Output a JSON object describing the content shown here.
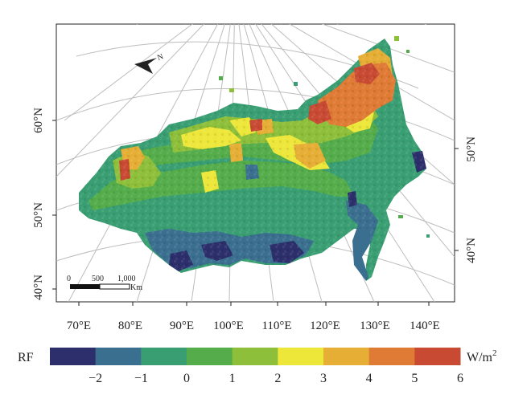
{
  "map": {
    "meridian_labels": [
      "70°E",
      "80°E",
      "90°E",
      "100°E",
      "110°E",
      "120°E",
      "130°E",
      "140°E"
    ],
    "left_lat_labels": [
      "60°N",
      "50°N",
      "40°N"
    ],
    "right_lat_labels": [
      "50°N",
      "40°N"
    ],
    "north_arrow_label": "N",
    "scale_bar": {
      "ticks": [
        "0",
        "500",
        "1,000"
      ],
      "unit": "Km"
    }
  },
  "legend": {
    "title": "RF",
    "unit": "W/m",
    "unit_superscript": "2",
    "tick_labels": [
      "−2",
      "−1",
      "0",
      "1",
      "2",
      "3",
      "4",
      "5",
      "6"
    ],
    "colors": [
      "#2c2f6b",
      "#3a6f8f",
      "#3a9e73",
      "#54ad4a",
      "#8dbf3a",
      "#ede73a",
      "#e6ae34",
      "#df7b34",
      "#c94a33"
    ]
  }
}
